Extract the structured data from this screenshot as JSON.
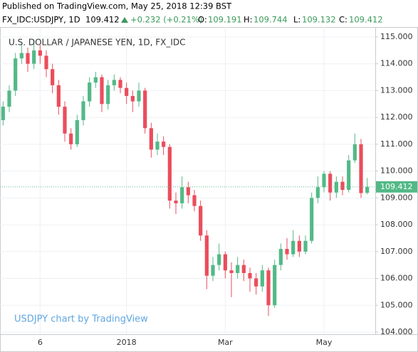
{
  "header": {
    "published": "Published on TradingView.com, May 25, 2018 12:39 BST",
    "symbol": "FX_IDC:USDJPY, 1D",
    "last": "109.412",
    "change": "+0.232 (+0.21%)",
    "o_label": "O:",
    "o_value": "109.191",
    "h_label": "H:",
    "h_value": "109.744",
    "l_label": "L:",
    "l_value": "109.132",
    "c_label": "C:",
    "c_value": "109.412"
  },
  "chart_data": {
    "type": "candlestick",
    "title": "U.S. DOLLAR / JAPANESE YEN, 1D, FX_IDC",
    "watermark": "USDJPY chart by TradingView",
    "up_color": "#53b987",
    "down_color": "#eb4d5c",
    "grid": true,
    "categories": [
      null,
      null,
      null,
      null,
      null,
      null,
      "6",
      null,
      null,
      null,
      null,
      null,
      null,
      null,
      null,
      null,
      null,
      null,
      null,
      null,
      "2018",
      null,
      null,
      null,
      null,
      null,
      null,
      null,
      null,
      null,
      null,
      null,
      null,
      null,
      null,
      null,
      "Mar",
      null,
      null,
      null,
      null,
      null,
      null,
      null,
      null,
      null,
      null,
      null,
      null,
      null,
      null,
      null,
      "May",
      null,
      null,
      null,
      null,
      null,
      null,
      null
    ],
    "open": [
      111.9,
      112.4,
      113.0,
      114.2,
      114.4,
      114.0,
      114.5,
      114.3,
      113.8,
      113.2,
      112.4,
      111.4,
      111.0,
      111.9,
      112.6,
      113.3,
      113.5,
      112.5,
      113.2,
      113.4,
      113.1,
      112.8,
      112.6,
      113.0,
      111.6,
      110.8,
      111.1,
      110.9,
      108.9,
      108.8,
      109.4,
      109.1,
      108.7,
      107.6,
      106.1,
      106.5,
      106.9,
      106.3,
      106.2,
      106.5,
      106.2,
      106.0,
      105.7,
      106.3,
      105.0,
      106.5,
      107.1,
      106.9,
      107.4,
      107.0,
      107.4,
      109.0,
      109.4,
      109.9,
      109.2,
      109.6,
      109.3,
      110.4,
      111.0,
      109.191
    ],
    "high": [
      112.6,
      113.2,
      114.4,
      114.7,
      114.6,
      114.9,
      114.7,
      114.5,
      114.0,
      113.4,
      112.6,
      111.6,
      112.1,
      112.8,
      113.5,
      113.7,
      113.6,
      113.4,
      113.6,
      113.5,
      113.3,
      113.0,
      113.3,
      113.1,
      111.8,
      111.4,
      111.3,
      111.0,
      109.2,
      109.8,
      109.6,
      109.3,
      108.9,
      107.8,
      106.8,
      107.3,
      107.0,
      106.6,
      106.8,
      106.7,
      106.4,
      106.2,
      106.5,
      106.4,
      106.7,
      107.3,
      107.5,
      107.8,
      107.6,
      107.6,
      109.2,
      109.8,
      110.0,
      110.0,
      109.8,
      109.8,
      110.6,
      111.4,
      111.2,
      109.744
    ],
    "low": [
      111.7,
      112.2,
      112.8,
      114.0,
      113.7,
      113.8,
      114.0,
      113.5,
      112.9,
      112.1,
      111.1,
      110.8,
      110.9,
      111.7,
      112.4,
      113.1,
      112.2,
      112.3,
      113.0,
      112.9,
      112.5,
      112.2,
      112.4,
      111.4,
      110.5,
      110.6,
      110.6,
      108.6,
      108.4,
      108.6,
      108.8,
      108.5,
      107.4,
      105.6,
      105.9,
      106.3,
      106.0,
      105.3,
      106.0,
      105.9,
      105.5,
      105.4,
      105.5,
      104.6,
      104.9,
      106.3,
      106.7,
      106.8,
      106.8,
      106.9,
      107.3,
      108.8,
      109.2,
      108.9,
      109.0,
      109.1,
      109.2,
      110.3,
      109.0,
      109.132
    ],
    "close": [
      112.4,
      113.0,
      114.2,
      114.4,
      114.0,
      114.5,
      114.3,
      113.8,
      113.2,
      112.4,
      111.4,
      111.0,
      111.9,
      112.6,
      113.3,
      113.5,
      112.5,
      113.2,
      113.4,
      113.1,
      112.8,
      112.6,
      113.0,
      111.6,
      110.8,
      111.1,
      110.9,
      108.9,
      108.8,
      109.4,
      109.1,
      108.7,
      107.6,
      106.1,
      106.5,
      106.9,
      106.3,
      106.2,
      106.5,
      106.2,
      106.0,
      105.7,
      106.3,
      105.0,
      106.5,
      107.1,
      106.9,
      107.4,
      107.0,
      107.4,
      109.0,
      109.4,
      109.9,
      109.2,
      109.6,
      109.3,
      110.4,
      111.0,
      109.18,
      109.412
    ],
    "ylim": [
      103.92,
      115.37
    ],
    "yticks": [
      {
        "value": 104,
        "label": "104.000"
      },
      {
        "value": 105,
        "label": "105.000"
      },
      {
        "value": 106,
        "label": "106.000"
      },
      {
        "value": 107,
        "label": "107.000"
      },
      {
        "value": 108,
        "label": "108.000"
      },
      {
        "value": 109,
        "label": "109.000"
      },
      {
        "value": 110,
        "label": "110.000"
      },
      {
        "value": 111,
        "label": "111.000"
      },
      {
        "value": 112,
        "label": "112.000"
      },
      {
        "value": 113,
        "label": "113.000"
      },
      {
        "value": 114,
        "label": "114.000"
      },
      {
        "value": 115,
        "label": "115.000"
      }
    ],
    "price_line": {
      "value": 109.412,
      "label": "109.412"
    }
  }
}
